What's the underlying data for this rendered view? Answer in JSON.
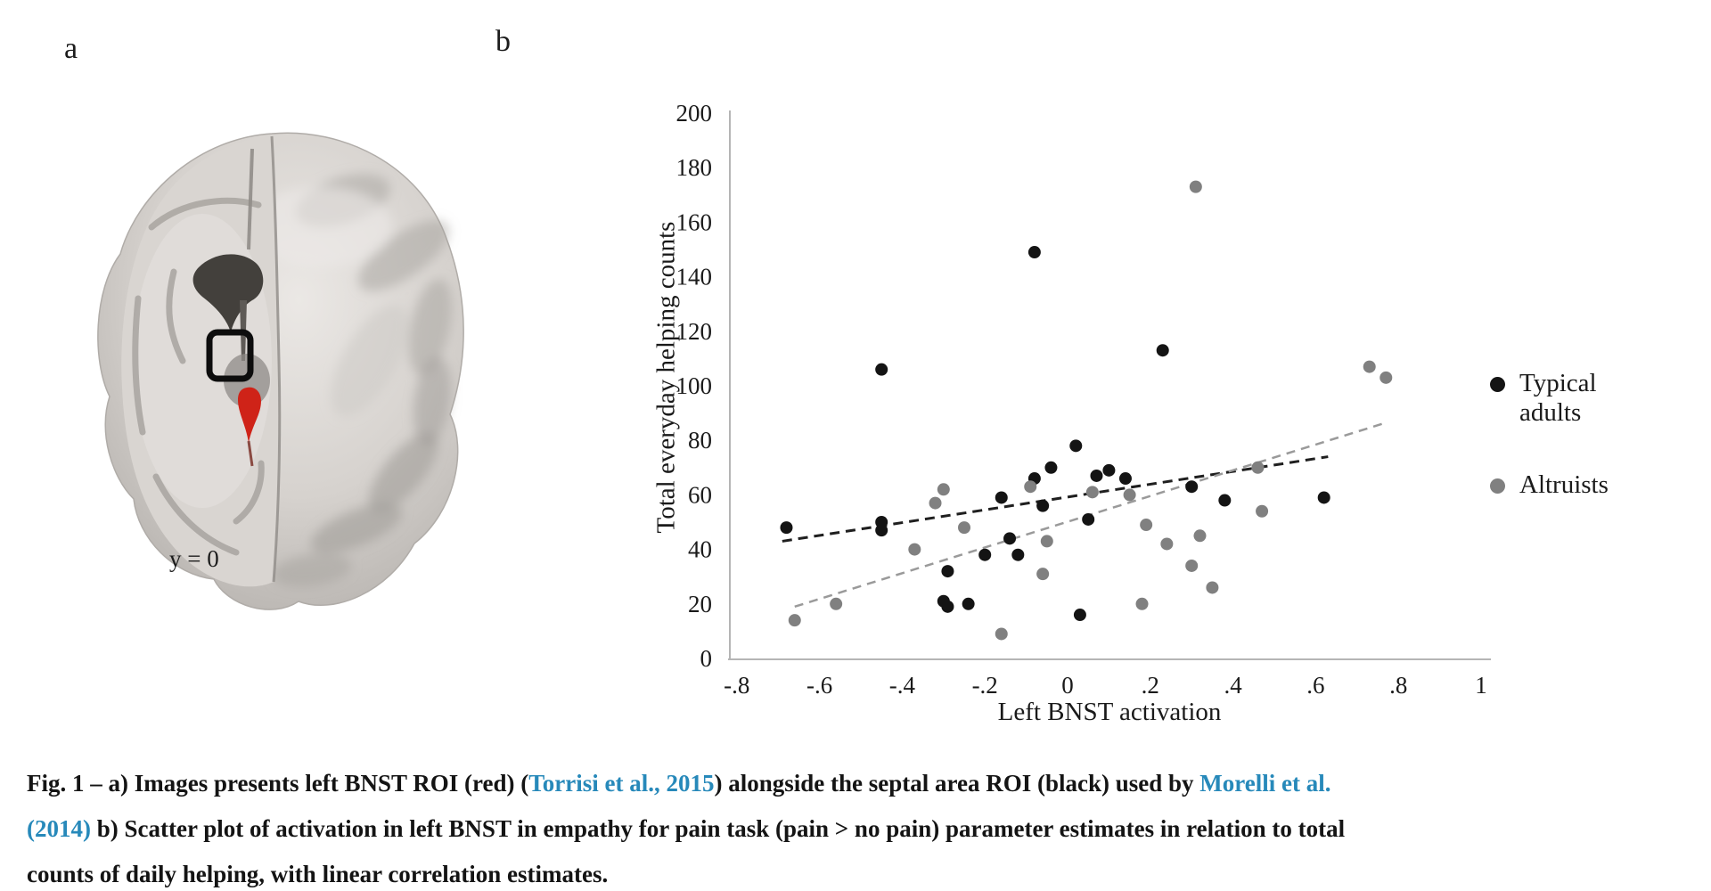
{
  "figure": {
    "panel_a": {
      "label": "a",
      "brain_y_label": "y = 0"
    },
    "panel_b": {
      "label": "b"
    },
    "caption": {
      "link_color": "#2789ba",
      "segments": [
        {
          "text": "Fig. 1 – a) Images presents left BNST ROI (red) (",
          "link": false
        },
        {
          "text": "Torrisi et al., 2015",
          "link": true
        },
        {
          "text": ") alongside the septal area ROI (black) used by ",
          "link": false
        },
        {
          "text": "Morelli et al. (2014)",
          "link": true
        },
        {
          "text": " b) Scatter plot of activation in left BNST in empathy for pain task (pain > no pain) parameter estimates in relation to total counts of daily helping, with linear correlation estimates.",
          "link": false
        }
      ]
    }
  },
  "chart_data": {
    "type": "scatter",
    "xlabel": "Left BNST activation",
    "ylabel": "Total everyday helping counts",
    "xlim": [
      -0.8,
      1
    ],
    "ylim": [
      0,
      200
    ],
    "grid": false,
    "legend_position": "right",
    "xticks": {
      "values": [
        -0.8,
        -0.6,
        -0.4,
        -0.2,
        0,
        0.2,
        0.4,
        0.6,
        0.8,
        1
      ],
      "labels": [
        "-.8",
        "-.6",
        "-.4",
        "-.2",
        "0",
        ".2",
        ".4",
        ".6",
        ".8",
        "1"
      ]
    },
    "yticks": {
      "values": [
        0,
        20,
        40,
        60,
        80,
        100,
        120,
        140,
        160,
        180,
        200
      ],
      "labels": [
        "0",
        "20",
        "40",
        "60",
        "80",
        "100",
        "120",
        "140",
        "160",
        "180",
        "200"
      ]
    },
    "legend": [
      {
        "name": "Typical adults",
        "color": "#141414"
      },
      {
        "name": "Altruists",
        "color": "#808080"
      }
    ],
    "series": [
      {
        "name": "Typical adults",
        "color": "#141414",
        "marker_radius": 7,
        "points": [
          [
            -0.68,
            48
          ],
          [
            -0.45,
            106
          ],
          [
            -0.45,
            50
          ],
          [
            -0.45,
            47
          ],
          [
            -0.3,
            21
          ],
          [
            -0.29,
            32
          ],
          [
            -0.29,
            19
          ],
          [
            -0.24,
            20
          ],
          [
            -0.2,
            38
          ],
          [
            -0.16,
            59
          ],
          [
            -0.14,
            44
          ],
          [
            -0.12,
            38
          ],
          [
            -0.08,
            149
          ],
          [
            -0.08,
            66
          ],
          [
            -0.06,
            56
          ],
          [
            -0.04,
            70
          ],
          [
            0.02,
            78
          ],
          [
            0.03,
            16
          ],
          [
            0.05,
            51
          ],
          [
            0.07,
            67
          ],
          [
            0.1,
            69
          ],
          [
            0.14,
            66
          ],
          [
            0.23,
            113
          ],
          [
            0.3,
            63
          ],
          [
            0.38,
            58
          ],
          [
            0.62,
            59
          ]
        ],
        "trend": {
          "x1": -0.69,
          "y1": 43,
          "x2": 0.63,
          "y2": 74,
          "color": "#1f1f1f",
          "dash": "11 7",
          "width": 3
        }
      },
      {
        "name": "Altruists",
        "color": "#808080",
        "marker_radius": 7,
        "points": [
          [
            -0.66,
            14
          ],
          [
            -0.56,
            20
          ],
          [
            -0.37,
            40
          ],
          [
            -0.32,
            57
          ],
          [
            -0.3,
            62
          ],
          [
            -0.25,
            48
          ],
          [
            -0.16,
            9
          ],
          [
            -0.09,
            63
          ],
          [
            -0.06,
            31
          ],
          [
            -0.05,
            43
          ],
          [
            0.06,
            61
          ],
          [
            0.15,
            60
          ],
          [
            0.18,
            20
          ],
          [
            0.19,
            49
          ],
          [
            0.24,
            42
          ],
          [
            0.3,
            34
          ],
          [
            0.31,
            173
          ],
          [
            0.32,
            45
          ],
          [
            0.35,
            26
          ],
          [
            0.46,
            70
          ],
          [
            0.47,
            54
          ],
          [
            0.73,
            107
          ],
          [
            0.77,
            103
          ]
        ],
        "trend": {
          "x1": -0.66,
          "y1": 19,
          "x2": 0.76,
          "y2": 86,
          "color": "#9a9a9a",
          "dash": "10 7",
          "width": 2.5
        }
      }
    ]
  }
}
